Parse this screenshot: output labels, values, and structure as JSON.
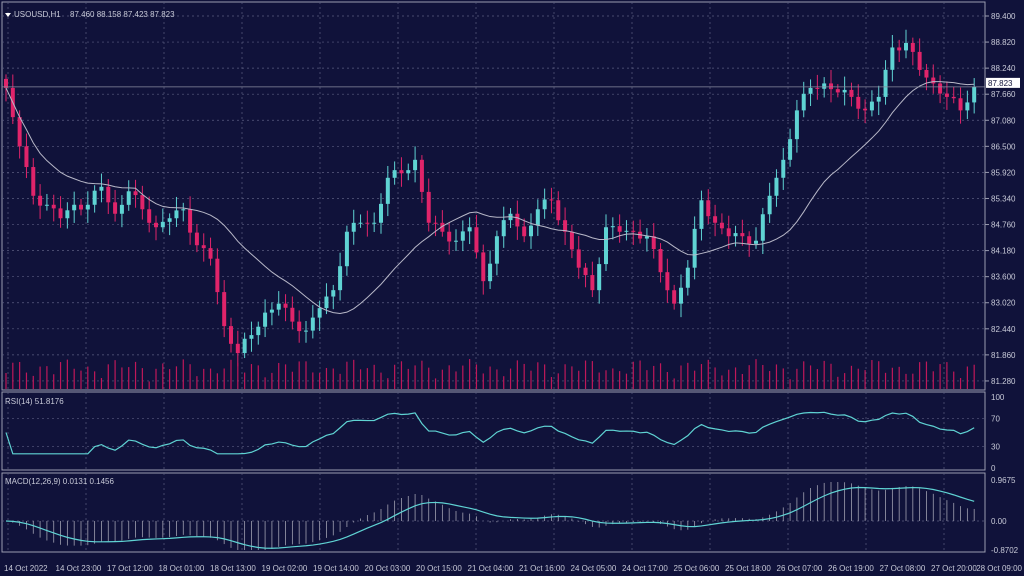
{
  "header": {
    "symbol": "USOUSD,H1",
    "ohlc": "87.460 88.158 87.423 87.823"
  },
  "colors": {
    "background": "#10123a",
    "bull": "#5fd3d3",
    "bear": "#e0246a",
    "ma": "#b8b8c8",
    "grid": "#5a5d80",
    "volume": "#c0185a",
    "rsi": "#5fd3d3",
    "macd_line": "#5fd3d3",
    "macd_hist": "#a0a0b0"
  },
  "chart_data": [
    {
      "type": "candlestick",
      "symbol": "USOUSD",
      "timeframe": "H1",
      "y_ticks": [
        "89.400",
        "88.820",
        "88.240",
        "87.660",
        "87.080",
        "86.500",
        "85.920",
        "85.340",
        "84.760",
        "84.180",
        "83.600",
        "83.020",
        "82.440",
        "81.860",
        "81.280"
      ],
      "ylim": [
        81.28,
        89.4
      ],
      "current_price": "87.823",
      "x_ticks": [
        "14 Oct 2022",
        "14 Oct 23:00",
        "17 Oct 12:00",
        "18 Oct 01:00",
        "18 Oct 13:00",
        "19 Oct 02:00",
        "19 Oct 14:00",
        "20 Oct 03:00",
        "20 Oct 15:00",
        "21 Oct 04:00",
        "21 Oct 16:00",
        "24 Oct 05:00",
        "24 Oct 17:00",
        "25 Oct 06:00",
        "25 Oct 18:00",
        "26 Oct 07:00",
        "26 Oct 19:00",
        "27 Oct 08:00",
        "27 Oct 20:00",
        "28 Oct 09:00"
      ],
      "approx_closes": [
        87.8,
        86.5,
        85.4,
        85.2,
        84.9,
        85.2,
        85.2,
        85.6,
        85.0,
        85.5,
        85.1,
        84.7,
        84.9,
        85.1,
        84.3,
        84.0,
        82.5,
        81.9,
        82.3,
        82.8,
        83.0,
        82.6,
        82.4,
        82.9,
        83.3,
        84.6,
        84.8,
        84.8,
        85.8,
        85.9,
        86.2,
        84.8,
        84.6,
        84.4,
        84.7,
        83.5,
        84.5,
        85.0,
        84.5,
        85.1,
        85.3,
        84.6,
        83.8,
        83.3,
        84.7,
        84.6,
        84.6,
        84.5,
        83.7,
        83.0,
        83.8,
        85.3,
        84.8,
        84.5,
        84.5,
        84.4,
        85.4,
        86.2,
        87.3,
        87.8,
        87.9,
        87.7,
        87.6,
        87.3,
        87.6,
        88.7,
        88.8,
        88.2,
        87.9,
        87.6,
        87.3,
        87.823
      ],
      "grid": true
    },
    {
      "type": "line",
      "title": "RSI(14) 51.8176",
      "y_ticks": [
        "100",
        "70",
        "30",
        "0"
      ],
      "ylim": [
        0,
        100
      ],
      "levels": [
        30,
        70
      ]
    },
    {
      "type": "line+bar",
      "title": "MACD(12,26,9) 0.0131 0.1456",
      "y_ticks": [
        "0.9675",
        "0.00",
        "-0.8702"
      ],
      "ylim": [
        -0.8702,
        0.9675
      ]
    }
  ]
}
